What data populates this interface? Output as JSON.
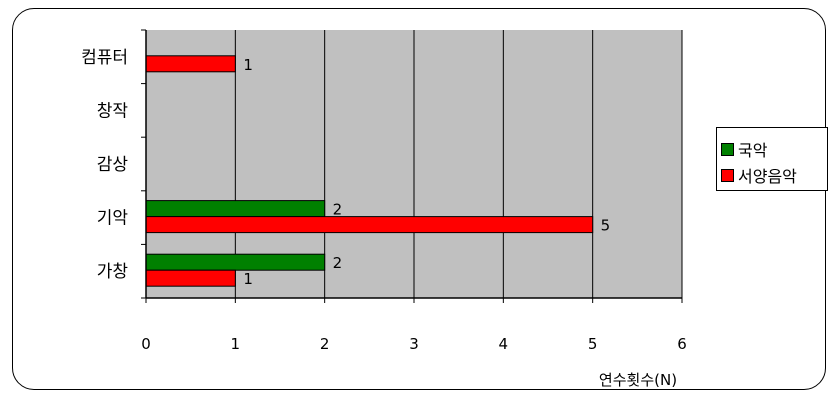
{
  "chart_data": {
    "type": "bar",
    "orientation": "horizontal",
    "categories": [
      "가창",
      "기악",
      "감상",
      "창작",
      "컴퓨터"
    ],
    "series": [
      {
        "name": "국악",
        "color": "#008000",
        "values": [
          2,
          2,
          0,
          0,
          0
        ]
      },
      {
        "name": "서양음악",
        "color": "#ff0000",
        "values": [
          1,
          5,
          0,
          0,
          1
        ]
      }
    ],
    "xlabel": "연수횟수(N)",
    "ylabel": "",
    "xlim": [
      0,
      6
    ],
    "xticks": [
      "0",
      "1",
      "2",
      "3",
      "4",
      "5",
      "6"
    ],
    "grid": true,
    "plot_background": "#c0c0c0",
    "legend": "right"
  }
}
